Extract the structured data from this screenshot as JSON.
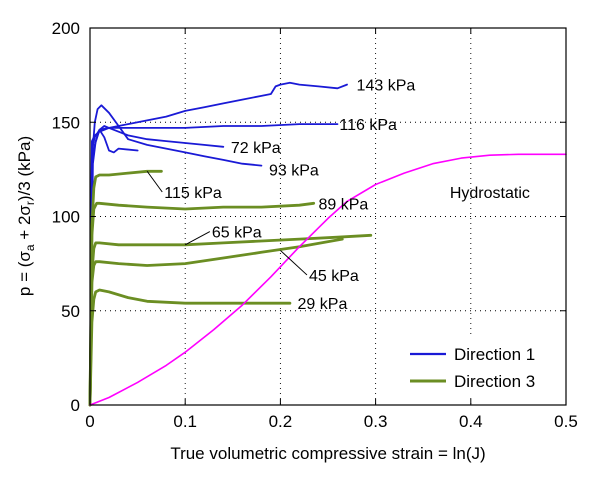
{
  "chart_data": {
    "type": "line",
    "title": "",
    "xlabel": "True volumetric compressive strain = ln(J)",
    "ylabel_parts": {
      "prefix": "p = (",
      "sigma1": "σ",
      "sub1": "a",
      "mid": " + 2",
      "sigma2": "σ",
      "sub2": "r",
      "suffix": ")/3 (kPa)"
    },
    "ylabel": "p = (σa + 2σr)/3 (kPa)",
    "xlim": [
      0,
      0.5
    ],
    "ylim": [
      0,
      200
    ],
    "xticks": [
      "0",
      "0.1",
      "0.2",
      "0.3",
      "0.4",
      "0.5"
    ],
    "xtick_values": [
      0,
      0.1,
      0.2,
      0.3,
      0.4,
      0.5
    ],
    "yticks": [
      "0",
      "50",
      "100",
      "150",
      "200"
    ],
    "ytick_values": [
      0,
      50,
      100,
      150,
      200
    ],
    "grid": true,
    "legend": {
      "position": "bottom-right",
      "entries": [
        {
          "label": "Direction 1",
          "color": "#1a1ad6"
        },
        {
          "label": "Direction 3",
          "color": "#6b8e23"
        }
      ]
    },
    "colors": {
      "direction_1": "#1a1ad6",
      "direction_3": "#6b8e23",
      "hydrostatic": "#ff00ff"
    },
    "series": [
      {
        "name": "143 kPa",
        "group": "Direction 1",
        "label": "143 kPa",
        "x": [
          0,
          0.002,
          0.005,
          0.01,
          0.02,
          0.04,
          0.06,
          0.08,
          0.1,
          0.12,
          0.14,
          0.16,
          0.18,
          0.19,
          0.195,
          0.2,
          0.21,
          0.22,
          0.24,
          0.26,
          0.27
        ],
        "y": [
          0,
          140,
          143,
          145,
          147,
          149,
          151,
          153,
          156,
          158,
          160,
          162,
          164,
          165,
          169,
          170,
          171,
          170,
          169,
          168,
          170
        ]
      },
      {
        "name": "116 kPa",
        "group": "Direction 1",
        "label": "116 kPa",
        "x": [
          0,
          0.002,
          0.005,
          0.01,
          0.02,
          0.04,
          0.06,
          0.08,
          0.1,
          0.14,
          0.18,
          0.22,
          0.26
        ],
        "y": [
          0,
          136,
          142,
          146,
          147,
          147,
          147,
          147,
          147,
          148,
          148,
          149,
          149
        ]
      },
      {
        "name": "72 kPa",
        "group": "Direction 1",
        "label": "72 kPa",
        "x": [
          0,
          0.002,
          0.005,
          0.01,
          0.015,
          0.02,
          0.03,
          0.04,
          0.06,
          0.08,
          0.1,
          0.12,
          0.14
        ],
        "y": [
          0,
          125,
          138,
          146,
          148,
          147,
          145,
          143,
          141,
          140,
          139,
          138,
          137
        ]
      },
      {
        "name": "93 kPa",
        "group": "Direction 1",
        "label": "93 kPa",
        "x": [
          0,
          0.002,
          0.005,
          0.008,
          0.012,
          0.02,
          0.03,
          0.04,
          0.06,
          0.08,
          0.1,
          0.12,
          0.14,
          0.16,
          0.18
        ],
        "y": [
          0,
          130,
          150,
          157,
          159,
          155,
          148,
          141,
          138,
          136,
          134,
          132,
          130,
          128,
          127
        ]
      },
      {
        "name": "93 kPa (inner)",
        "group": "Direction 1",
        "label": "",
        "x": [
          0,
          0.003,
          0.006,
          0.01,
          0.015,
          0.02,
          0.025,
          0.03,
          0.05
        ],
        "y": [
          0,
          128,
          140,
          146,
          142,
          135,
          134,
          136,
          135
        ]
      },
      {
        "name": "115 kPa",
        "group": "Direction 3",
        "label": "115 kPa",
        "x": [
          0,
          0.002,
          0.004,
          0.006,
          0.01,
          0.02,
          0.04,
          0.06,
          0.075
        ],
        "y": [
          0,
          95,
          115,
          121,
          122,
          122,
          123,
          124,
          124
        ]
      },
      {
        "name": "89 kPa",
        "group": "Direction 3",
        "label": "89 kPa",
        "x": [
          0,
          0.002,
          0.004,
          0.007,
          0.01,
          0.03,
          0.06,
          0.1,
          0.14,
          0.18,
          0.22,
          0.235
        ],
        "y": [
          0,
          90,
          104,
          107,
          107,
          106,
          105,
          104,
          105,
          105,
          106,
          107
        ]
      },
      {
        "name": "65 kPa",
        "group": "Direction 3",
        "label": "65 kPa",
        "x": [
          0,
          0.002,
          0.004,
          0.006,
          0.01,
          0.03,
          0.06,
          0.1,
          0.14,
          0.18,
          0.22,
          0.26,
          0.295
        ],
        "y": [
          0,
          70,
          83,
          86,
          86,
          85,
          85,
          85,
          86,
          87,
          88,
          89,
          90
        ]
      },
      {
        "name": "45 kPa",
        "group": "Direction 3",
        "label": "45 kPa",
        "x": [
          0,
          0.002,
          0.004,
          0.006,
          0.01,
          0.03,
          0.06,
          0.1,
          0.14,
          0.18,
          0.22,
          0.265
        ],
        "y": [
          0,
          65,
          74,
          76,
          76,
          75,
          74,
          75,
          78,
          81,
          84,
          88
        ]
      },
      {
        "name": "29 kPa",
        "group": "Direction 3",
        "label": "29 kPa",
        "x": [
          0,
          0.002,
          0.004,
          0.006,
          0.01,
          0.02,
          0.04,
          0.06,
          0.1,
          0.14,
          0.18,
          0.21
        ],
        "y": [
          0,
          44,
          56,
          60,
          61,
          60,
          57,
          55,
          54,
          54,
          54,
          54
        ]
      },
      {
        "name": "Hydrostatic",
        "group": "Hydrostatic",
        "label": "Hydrostatic",
        "x": [
          0,
          0.02,
          0.05,
          0.08,
          0.1,
          0.13,
          0.16,
          0.19,
          0.22,
          0.25,
          0.27,
          0.3,
          0.33,
          0.36,
          0.39,
          0.42,
          0.45,
          0.5
        ],
        "y": [
          0,
          4,
          12,
          21,
          28,
          40,
          53,
          68,
          84,
          99,
          108,
          117,
          123,
          128,
          131,
          132.5,
          133,
          133
        ]
      }
    ],
    "annotations": [
      {
        "text": "143 kPa",
        "x": 0.28,
        "y": 170
      },
      {
        "text": "116 kPa",
        "x": 0.262,
        "y": 149
      },
      {
        "text": "72 kPa",
        "x": 0.148,
        "y": 137
      },
      {
        "text": "93 kPa",
        "x": 0.188,
        "y": 125
      },
      {
        "text": "115 kPa",
        "x": 0.078,
        "y": 113,
        "pointer_to": {
          "x": 0.06,
          "y": 124
        }
      },
      {
        "text": "89 kPa",
        "x": 0.24,
        "y": 107
      },
      {
        "text": "65 kPa",
        "x": 0.128,
        "y": 92,
        "pointer_to": {
          "x": 0.1,
          "y": 85
        }
      },
      {
        "text": "45 kPa",
        "x": 0.23,
        "y": 69,
        "pointer_to": {
          "x": 0.2,
          "y": 82
        }
      },
      {
        "text": "29 kPa",
        "x": 0.218,
        "y": 54
      },
      {
        "text": "Hydrostatic",
        "x": 0.378,
        "y": 113
      }
    ]
  }
}
